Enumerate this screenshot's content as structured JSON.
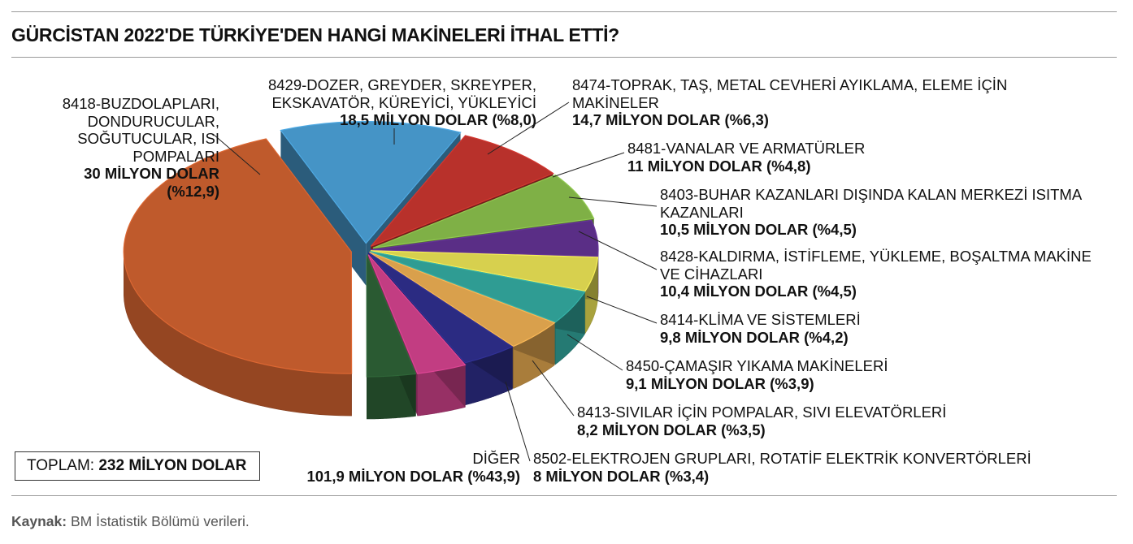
{
  "title": "GÜRCİSTAN 2022'DE TÜRKİYE'DEN HANGİ MAKİNELERİ İTHAL ETTİ?",
  "total": {
    "label": "TOPLAM:",
    "value": "232 MİLYON DOLAR"
  },
  "source": {
    "label": "Kaynak:",
    "text": "BM İstatistik Bölümü verileri."
  },
  "colors": {
    "8418": "#4594c6",
    "8429": "#b8312b",
    "8474": "#7fb046",
    "8481": "#5a2e86",
    "8403": "#d7d04e",
    "8428": "#2f9c93",
    "8414": "#d9a04c",
    "8450": "#2b2b82",
    "8413": "#c23d82",
    "8502": "#2a5a32",
    "diger": "#bf5a2c"
  },
  "chart_data": {
    "type": "pie",
    "unit": "MİLYON DOLAR",
    "slices": [
      {
        "key": "8418",
        "name_lines": [
          "8418-BUZDOLAPLARI,",
          "DONDURUCULAR,",
          "SOĞUTUCULAR, ISI",
          "POMPALARI"
        ],
        "value": 30,
        "percent": 12.9,
        "value_lines": [
          "30 MİLYON DOLAR",
          "(%12,9)"
        ]
      },
      {
        "key": "8429",
        "name_lines": [
          "8429-DOZER, GREYDER, SKREYPER,",
          "EKSKAVATÖR, KÜREYİCİ, YÜKLEYİCİ"
        ],
        "value": 18.5,
        "percent": 8.0,
        "value_lines": [
          "18,5 MİLYON DOLAR (%8,0)"
        ]
      },
      {
        "key": "8474",
        "name_lines": [
          "8474-TOPRAK, TAŞ, METAL CEVHERİ AYIKLAMA, ELEME İÇİN",
          "MAKİNELER"
        ],
        "value": 14.7,
        "percent": 6.3,
        "value_lines": [
          "14,7 MİLYON DOLAR (%6,3)"
        ]
      },
      {
        "key": "8481",
        "name_lines": [
          "8481-VANALAR VE ARMATÜRLER"
        ],
        "value": 11,
        "percent": 4.8,
        "value_lines": [
          "11 MİLYON DOLAR (%4,8)"
        ]
      },
      {
        "key": "8403",
        "name_lines": [
          "8403-BUHAR KAZANLARI DIŞINDA KALAN MERKEZİ ISITMA",
          "KAZANLARI"
        ],
        "value": 10.5,
        "percent": 4.5,
        "value_lines": [
          "10,5 MİLYON DOLAR (%4,5)"
        ]
      },
      {
        "key": "8428",
        "name_lines": [
          "8428-KALDIRMA, İSTİFLEME, YÜKLEME, BOŞALTMA MAKİNE",
          "VE CİHAZLARI"
        ],
        "value": 10.4,
        "percent": 4.5,
        "value_lines": [
          "10,4 MİLYON DOLAR (%4,5)"
        ]
      },
      {
        "key": "8414",
        "name_lines": [
          "8414-KLİMA VE SİSTEMLERİ"
        ],
        "value": 9.8,
        "percent": 4.2,
        "value_lines": [
          "9,8 MİLYON DOLAR (%4,2)"
        ]
      },
      {
        "key": "8450",
        "name_lines": [
          "8450-ÇAMAŞIR YIKAMA MAKİNELERİ"
        ],
        "value": 9.1,
        "percent": 3.9,
        "value_lines": [
          "9,1 MİLYON DOLAR (%3,9)"
        ]
      },
      {
        "key": "8413",
        "name_lines": [
          "8413-SIVILAR İÇİN POMPALAR, SIVI ELEVATÖRLERİ"
        ],
        "value": 8.2,
        "percent": 3.5,
        "value_lines": [
          "8,2 MİLYON DOLAR (%3,5)"
        ]
      },
      {
        "key": "8502",
        "name_lines": [
          "8502-ELEKTROJEN GRUPLARI, ROTATİF ELEKTRİK KONVERTÖRLERİ"
        ],
        "value": 8,
        "percent": 3.4,
        "value_lines": [
          "8 MİLYON DOLAR (%3,4)"
        ]
      },
      {
        "key": "diger",
        "name_lines": [
          "DİĞER"
        ],
        "value": 101.9,
        "percent": 43.9,
        "value_lines": [
          "101,9 MİLYON DOLAR (%43,9)"
        ]
      }
    ]
  }
}
